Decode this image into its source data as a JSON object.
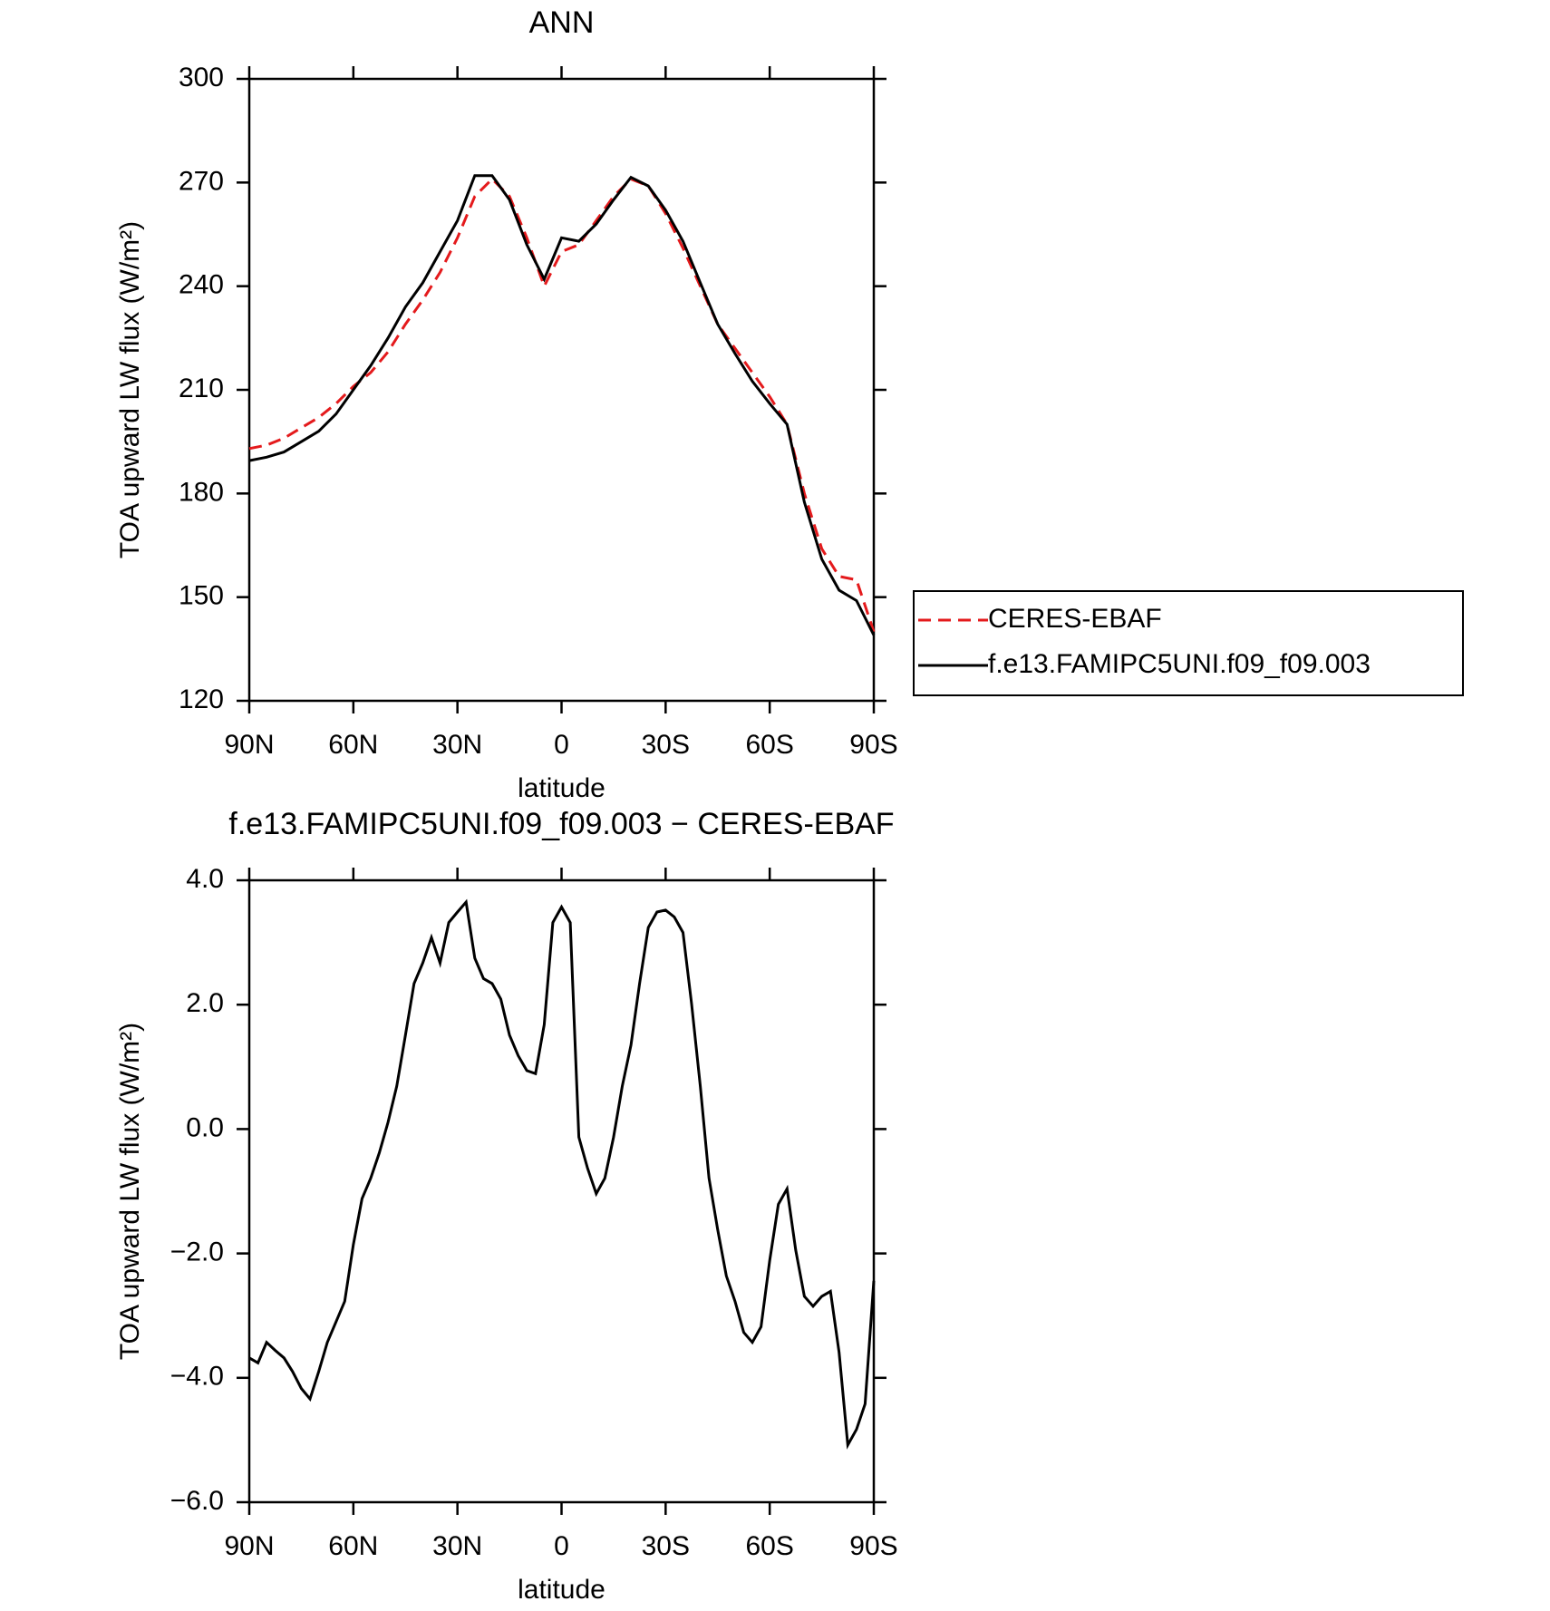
{
  "chart_data": [
    {
      "type": "line",
      "title": "ANN",
      "xlabel": "latitude",
      "ylabel": "TOA upward LW flux (W/m²)",
      "x": [
        90,
        85,
        80,
        75,
        70,
        65,
        60,
        55,
        50,
        45,
        40,
        35,
        30,
        25,
        20,
        15,
        10,
        5,
        0,
        -5,
        -10,
        -15,
        -20,
        -25,
        -30,
        -35,
        -40,
        -45,
        -50,
        -55,
        -60,
        -65,
        -70,
        -75,
        -80,
        -85,
        -90
      ],
      "xlim": [
        90,
        -90
      ],
      "xticks": [
        {
          "value": 90,
          "label": "90N"
        },
        {
          "value": 60,
          "label": "60N"
        },
        {
          "value": 30,
          "label": "30N"
        },
        0,
        {
          "value": -30,
          "label": "30S"
        },
        {
          "value": -60,
          "label": "60S"
        },
        {
          "value": -90,
          "label": "90S"
        }
      ],
      "ylim": [
        120,
        300
      ],
      "yticks": [
        120,
        150,
        180,
        210,
        240,
        270,
        300
      ],
      "legend": "right",
      "series": [
        {
          "name": "CERES-EBAF",
          "color": "#e41a1c",
          "dashed": true,
          "values": [
            193,
            194,
            196,
            199,
            202,
            206,
            211,
            215,
            221,
            229,
            236,
            244,
            254,
            266,
            271,
            266,
            254,
            240,
            250,
            252,
            259,
            266,
            271,
            269,
            261,
            251,
            240,
            229,
            222,
            215,
            208,
            200,
            180,
            164,
            156,
            155,
            140
          ]
        },
        {
          "name": "f.e13.FAMIPC5UNI.f09_f09.003",
          "color": "#000000",
          "dashed": false,
          "values": [
            189.5,
            190.5,
            192,
            195,
            198,
            203,
            210,
            217,
            225,
            234,
            241,
            250,
            259,
            272,
            272,
            265,
            252,
            242,
            254,
            253,
            258,
            265,
            271.5,
            269,
            262,
            253,
            241,
            229,
            220.5,
            212.5,
            206,
            200,
            177.5,
            161,
            152,
            149,
            139
          ]
        }
      ]
    },
    {
      "type": "line",
      "title": "f.e13.FAMIPC5UNI.f09_f09.003 − CERES-EBAF",
      "xlabel": "latitude",
      "ylabel": "TOA upward LW flux (W/m²)",
      "x": [
        90,
        87.5,
        85,
        82.5,
        80,
        77.5,
        75,
        72.5,
        70,
        67.5,
        65,
        62.5,
        60,
        57.5,
        55,
        52.5,
        50,
        47.5,
        45,
        42.5,
        40,
        37.5,
        35,
        32.5,
        30,
        27.5,
        25,
        22.5,
        20,
        17.5,
        15,
        12.5,
        10,
        7.5,
        5,
        2.5,
        0,
        -2.5,
        -5,
        -7.5,
        -10,
        -12.5,
        -15,
        -17.5,
        -20,
        -22.5,
        -25,
        -27.5,
        -30,
        -32.5,
        -35,
        -37.5,
        -40,
        -42.5,
        -45,
        -47.5,
        -50,
        -52.5,
        -55,
        -57.5,
        -60,
        -62.5,
        -65,
        -67.5,
        -70,
        -72.5,
        -75,
        -77.5,
        -80,
        -82.5,
        -85,
        -87.5,
        -90
      ],
      "xlim": [
        90,
        -90
      ],
      "xticks": [
        {
          "value": 90,
          "label": "90N"
        },
        {
          "value": 60,
          "label": "60N"
        },
        {
          "value": 30,
          "label": "30N"
        },
        0,
        {
          "value": -30,
          "label": "30S"
        },
        {
          "value": -60,
          "label": "60S"
        },
        {
          "value": -90,
          "label": "90S"
        }
      ],
      "ylim": [
        -6,
        4
      ],
      "yticks": [
        {
          "value": -6,
          "label": "−6.0"
        },
        {
          "value": -4,
          "label": "−4.0"
        },
        {
          "value": -2,
          "label": "−2.0"
        },
        {
          "value": 0,
          "label": "0.0"
        },
        {
          "value": 2,
          "label": "2.0"
        },
        {
          "value": 4,
          "label": "4.0"
        }
      ],
      "color": "#000000",
      "values": [
        -3.68,
        -3.76,
        -3.43,
        -3.56,
        -3.68,
        -3.9,
        -4.17,
        -4.34,
        -3.9,
        -3.43,
        -3.1,
        -2.77,
        -1.86,
        -1.12,
        -0.79,
        -0.38,
        0.11,
        0.69,
        1.51,
        2.34,
        2.67,
        3.08,
        2.67,
        3.32,
        3.49,
        3.65,
        2.75,
        2.42,
        2.34,
        2.09,
        1.51,
        1.18,
        0.94,
        0.89,
        1.68,
        3.32,
        3.57,
        3.32,
        -0.13,
        -0.63,
        -1.04,
        -0.79,
        -0.13,
        0.69,
        1.35,
        2.34,
        3.24,
        3.49,
        3.52,
        3.41,
        3.16,
        2.01,
        0.69,
        -0.79,
        -1.62,
        -2.36,
        -2.77,
        -3.27,
        -3.43,
        -3.18,
        -2.11,
        -1.21,
        -0.96,
        -1.95,
        -2.69,
        -2.85,
        -2.69,
        -2.61,
        -3.59,
        -5.08,
        -4.83,
        -4.42,
        -2.44
      ]
    }
  ]
}
